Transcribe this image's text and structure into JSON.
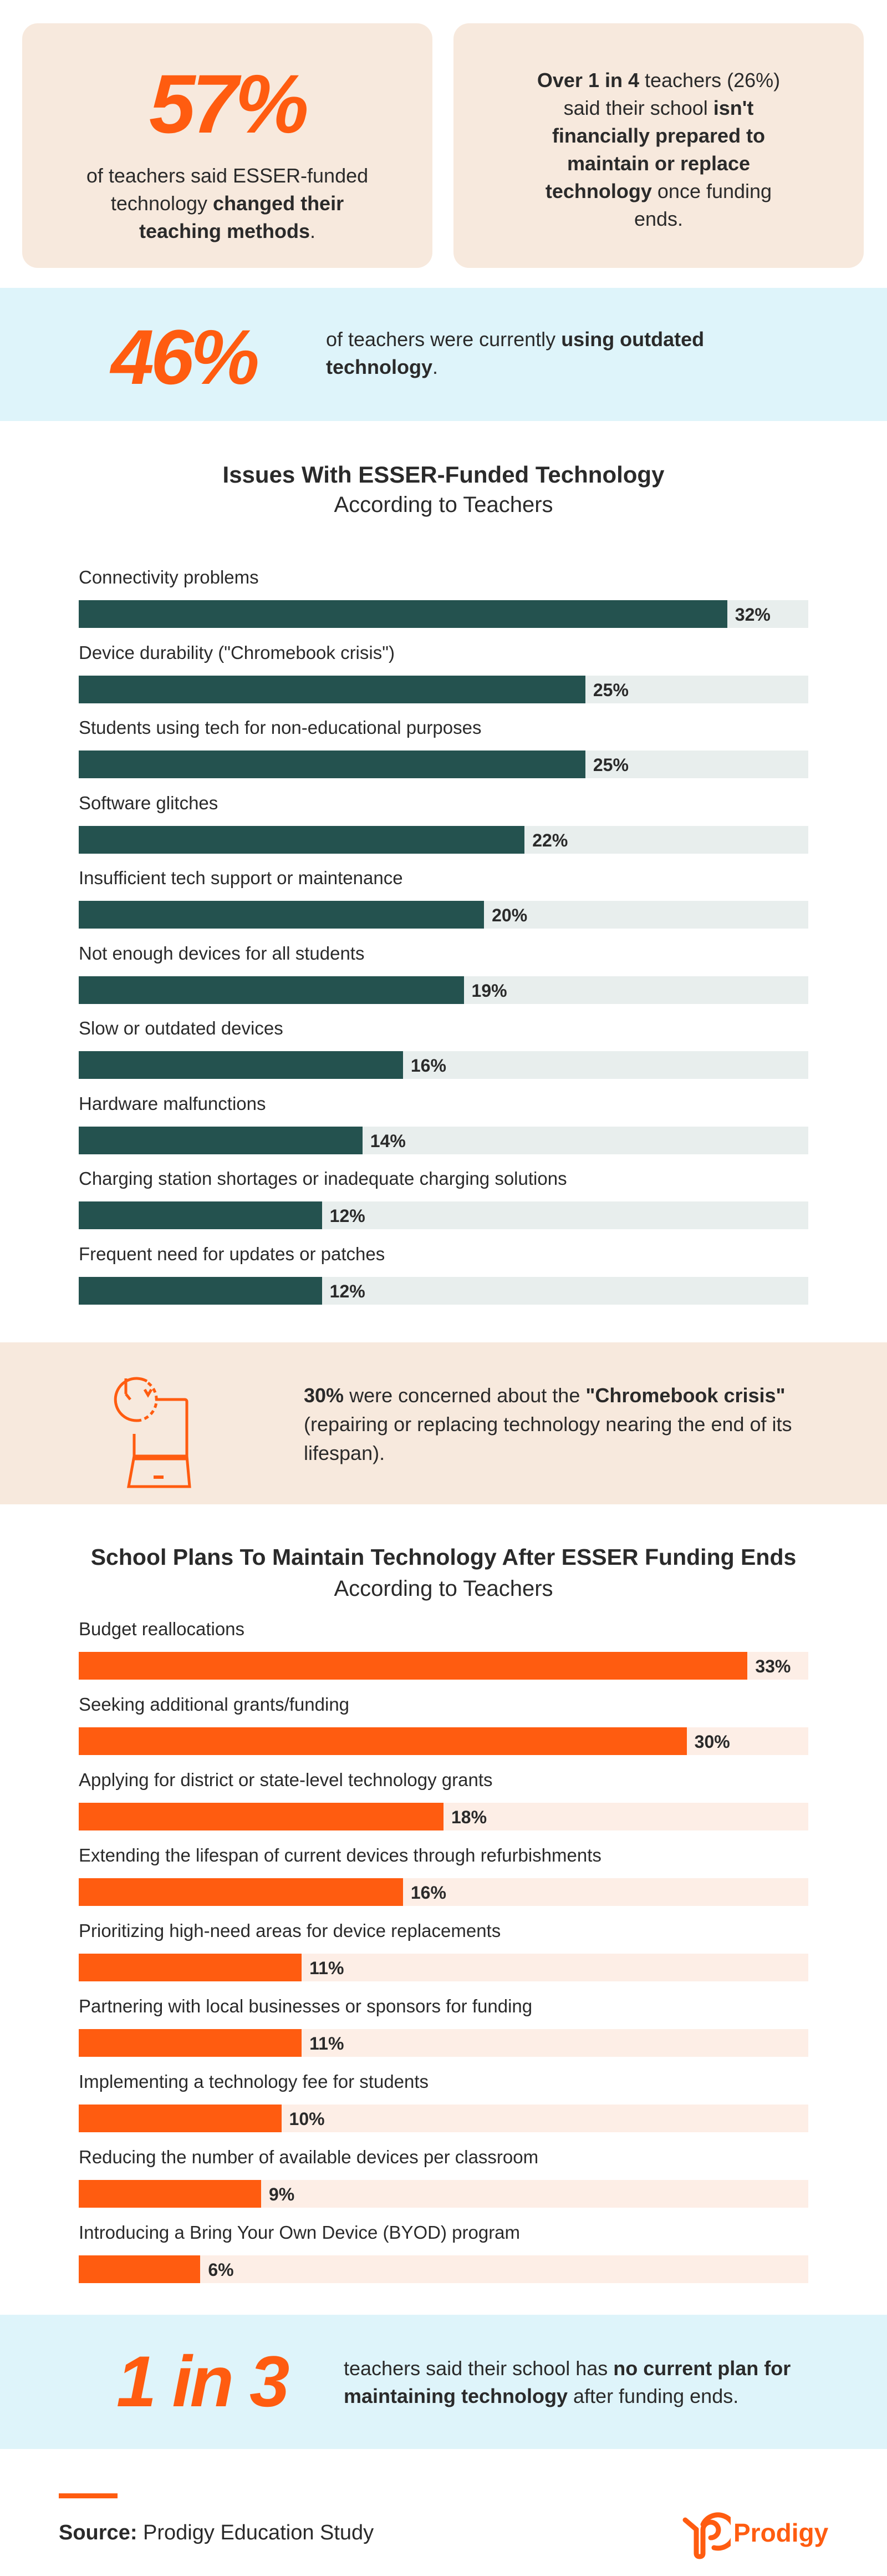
{
  "colors": {
    "accent": "#ff5c10",
    "teal": "#24524f",
    "teal_track": "#e8eeed",
    "orange_track": "#fdeee6",
    "beige": "#f7e9dd",
    "light_blue": "#def4fa",
    "text": "#2a2a2a"
  },
  "card1": {
    "big": "57%",
    "text_pre": "of teachers said ESSER-funded technology ",
    "text_bold": "changed their teaching methods",
    "text_post": "."
  },
  "card2": {
    "bold1": "Over 1 in 4",
    "text1": " teachers (26%) said their school ",
    "bold2": "isn't financially prepared to maintain or replace technology",
    "text2": " once funding ends."
  },
  "band1": {
    "big": "46%",
    "text_pre": "of teachers were currently ",
    "text_bold": "using outdated technology",
    "text_post": "."
  },
  "band2": {
    "icon": "laptop-clock-icon",
    "bold1": "30%",
    "text1": " were concerned about the ",
    "bold2": "\"Chromebook crisis\"",
    "text2": " (repairing or replacing technology nearing the end of its lifespan)."
  },
  "band3": {
    "big": "1 in 3",
    "text_pre": "teachers said their school has ",
    "text_bold": "no current plan for maintaining technology",
    "text_post": " after funding ends."
  },
  "footer": {
    "source_label": "Source:",
    "source_text": " Prodigy Education Study",
    "logo_text": "Prodigy"
  },
  "chart_data": [
    {
      "type": "bar",
      "orientation": "horizontal",
      "title": "Issues With ESSER-Funded Technology",
      "subtitle": "According to Teachers",
      "xlim": [
        0,
        36
      ],
      "unit": "%",
      "color": "#24524f",
      "categories": [
        "Connectivity problems",
        "Device durability (\"Chromebook crisis\")",
        "Students using tech for non-educational purposes",
        "Software glitches",
        "Insufficient tech support or maintenance",
        "Not enough devices for all students",
        "Slow or outdated devices",
        "Hardware malfunctions",
        "Charging station shortages or inadequate charging solutions",
        "Frequent need for updates or patches"
      ],
      "values": [
        32,
        25,
        25,
        22,
        20,
        19,
        16,
        14,
        12,
        12
      ],
      "labels": [
        "32%",
        "25%",
        "25%",
        "22%",
        "20%",
        "19%",
        "16%",
        "14%",
        "12%",
        "12%"
      ]
    },
    {
      "type": "bar",
      "orientation": "horizontal",
      "title": "School Plans To Maintain Technology After ESSER Funding Ends",
      "subtitle": "According to Teachers",
      "xlim": [
        0,
        36
      ],
      "unit": "%",
      "color": "#ff5c10",
      "categories": [
        "Budget reallocations",
        "Seeking additional grants/funding",
        "Applying for district or state-level technology grants",
        "Extending the lifespan of current devices through refurbishments",
        "Prioritizing high-need areas for device replacements",
        "Partnering with local businesses or sponsors for funding",
        "Implementing a technology fee for students",
        "Reducing the number of available devices per classroom",
        "Introducing a Bring Your Own Device (BYOD) program"
      ],
      "values": [
        33,
        30,
        18,
        16,
        11,
        11,
        10,
        9,
        6
      ],
      "labels": [
        "33%",
        "30%",
        "18%",
        "16%",
        "11%",
        "11%",
        "10%",
        "9%",
        "6%"
      ]
    }
  ]
}
